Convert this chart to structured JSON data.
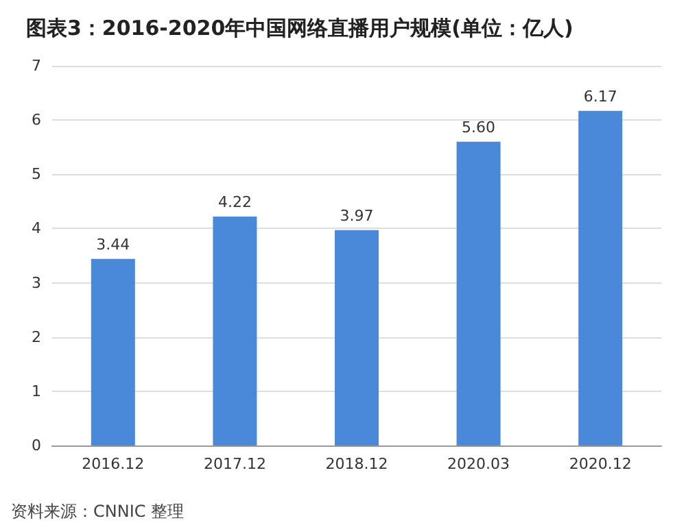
{
  "chart_data": {
    "type": "bar",
    "title": "图表3：2016-2020年中国网络直播用户规模(单位：亿人)",
    "categories": [
      "2016.12",
      "2017.12",
      "2018.12",
      "2020.03",
      "2020.12"
    ],
    "values": [
      3.44,
      4.22,
      3.97,
      5.6,
      6.17
    ],
    "color": "#4a88d9",
    "value_labels": [
      "3.44",
      "4.22",
      "3.97",
      "5.60",
      "6.17"
    ],
    "ylim": [
      0,
      7
    ],
    "yticks": [
      0,
      1,
      2,
      3,
      4,
      5,
      6,
      7
    ],
    "grid": "y",
    "annotations": [
      "资料来源：CNNIC 整理"
    ]
  }
}
